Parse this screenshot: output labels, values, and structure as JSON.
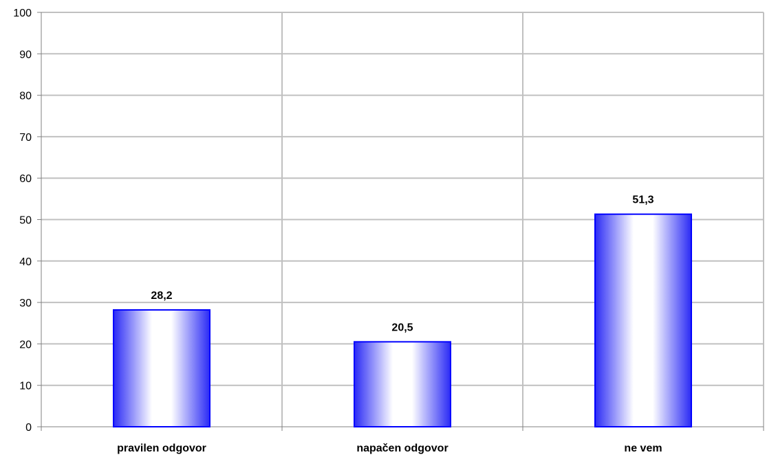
{
  "chart_data": {
    "type": "bar",
    "categories": [
      "pravilen odgovor",
      "napačen odgovor",
      "ne vem"
    ],
    "values": [
      28.2,
      20.5,
      51.3
    ],
    "data_labels": [
      "28,2",
      "20,5",
      "51,3"
    ],
    "ylim": [
      0,
      100
    ],
    "yticks": [
      0,
      10,
      20,
      30,
      40,
      50,
      60,
      70,
      80,
      90,
      100
    ],
    "grid": true,
    "legend": "none",
    "colors": {
      "bar_edge": "#0000ff",
      "bar_dark": "#2a2af5",
      "bar_light": "#ffffff",
      "grid": "#c0c0c0",
      "axis": "#808080"
    }
  }
}
